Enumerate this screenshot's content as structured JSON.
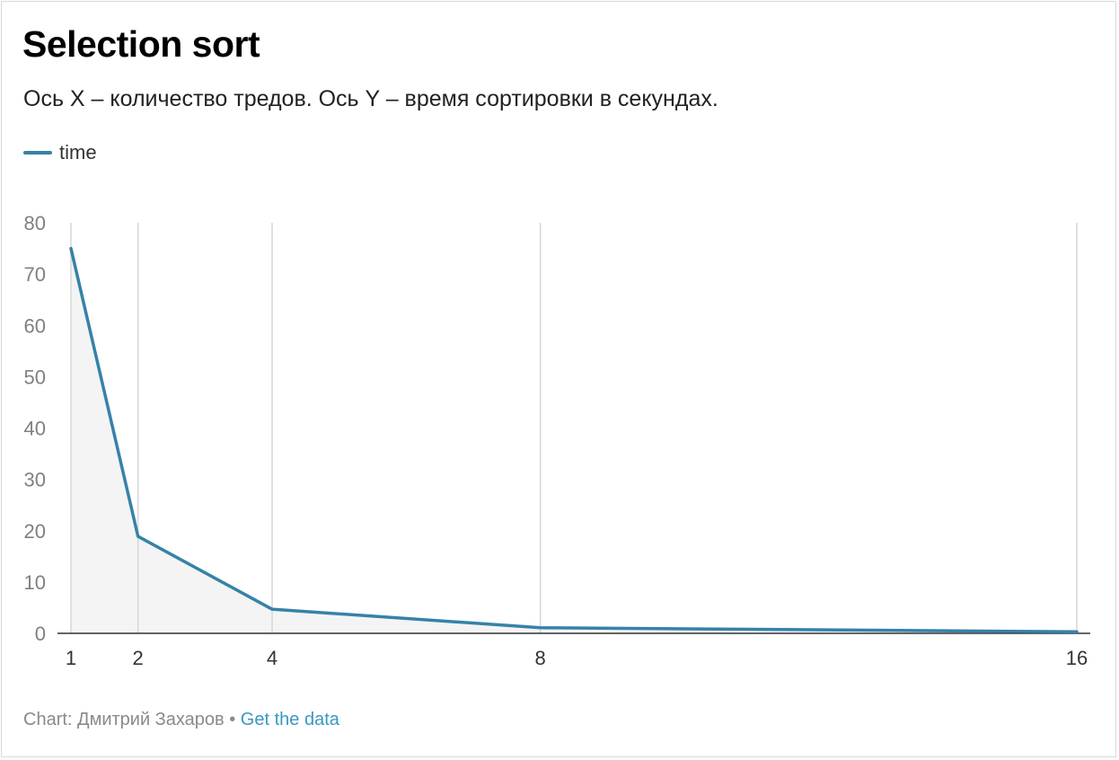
{
  "chart_data": {
    "type": "line",
    "title": "Selection sort",
    "subtitle": "Ось X – количество тредов. Ось Y – время сортировки в секундах.",
    "xlabel": "",
    "ylabel": "",
    "x": [
      1,
      2,
      4,
      8,
      16
    ],
    "x_ticks": [
      "1",
      "2",
      "4",
      "8",
      "16"
    ],
    "xlim": [
      1,
      16
    ],
    "y_ticks": [
      "0",
      "10",
      "20",
      "30",
      "40",
      "50",
      "60",
      "70",
      "80"
    ],
    "ylim": [
      0,
      80
    ],
    "series": [
      {
        "name": "time",
        "values": [
          75,
          18.9,
          4.7,
          1.1,
          0.3
        ],
        "color": "#3682a8"
      }
    ],
    "fill_color": "#f4f4f4",
    "grid": "vertical",
    "legend_position": "top-left"
  },
  "footer": {
    "credit": "Chart: Дмитрий Захаров",
    "separator": "•",
    "link_label": "Get the data",
    "link_color": "#3a97c5"
  }
}
